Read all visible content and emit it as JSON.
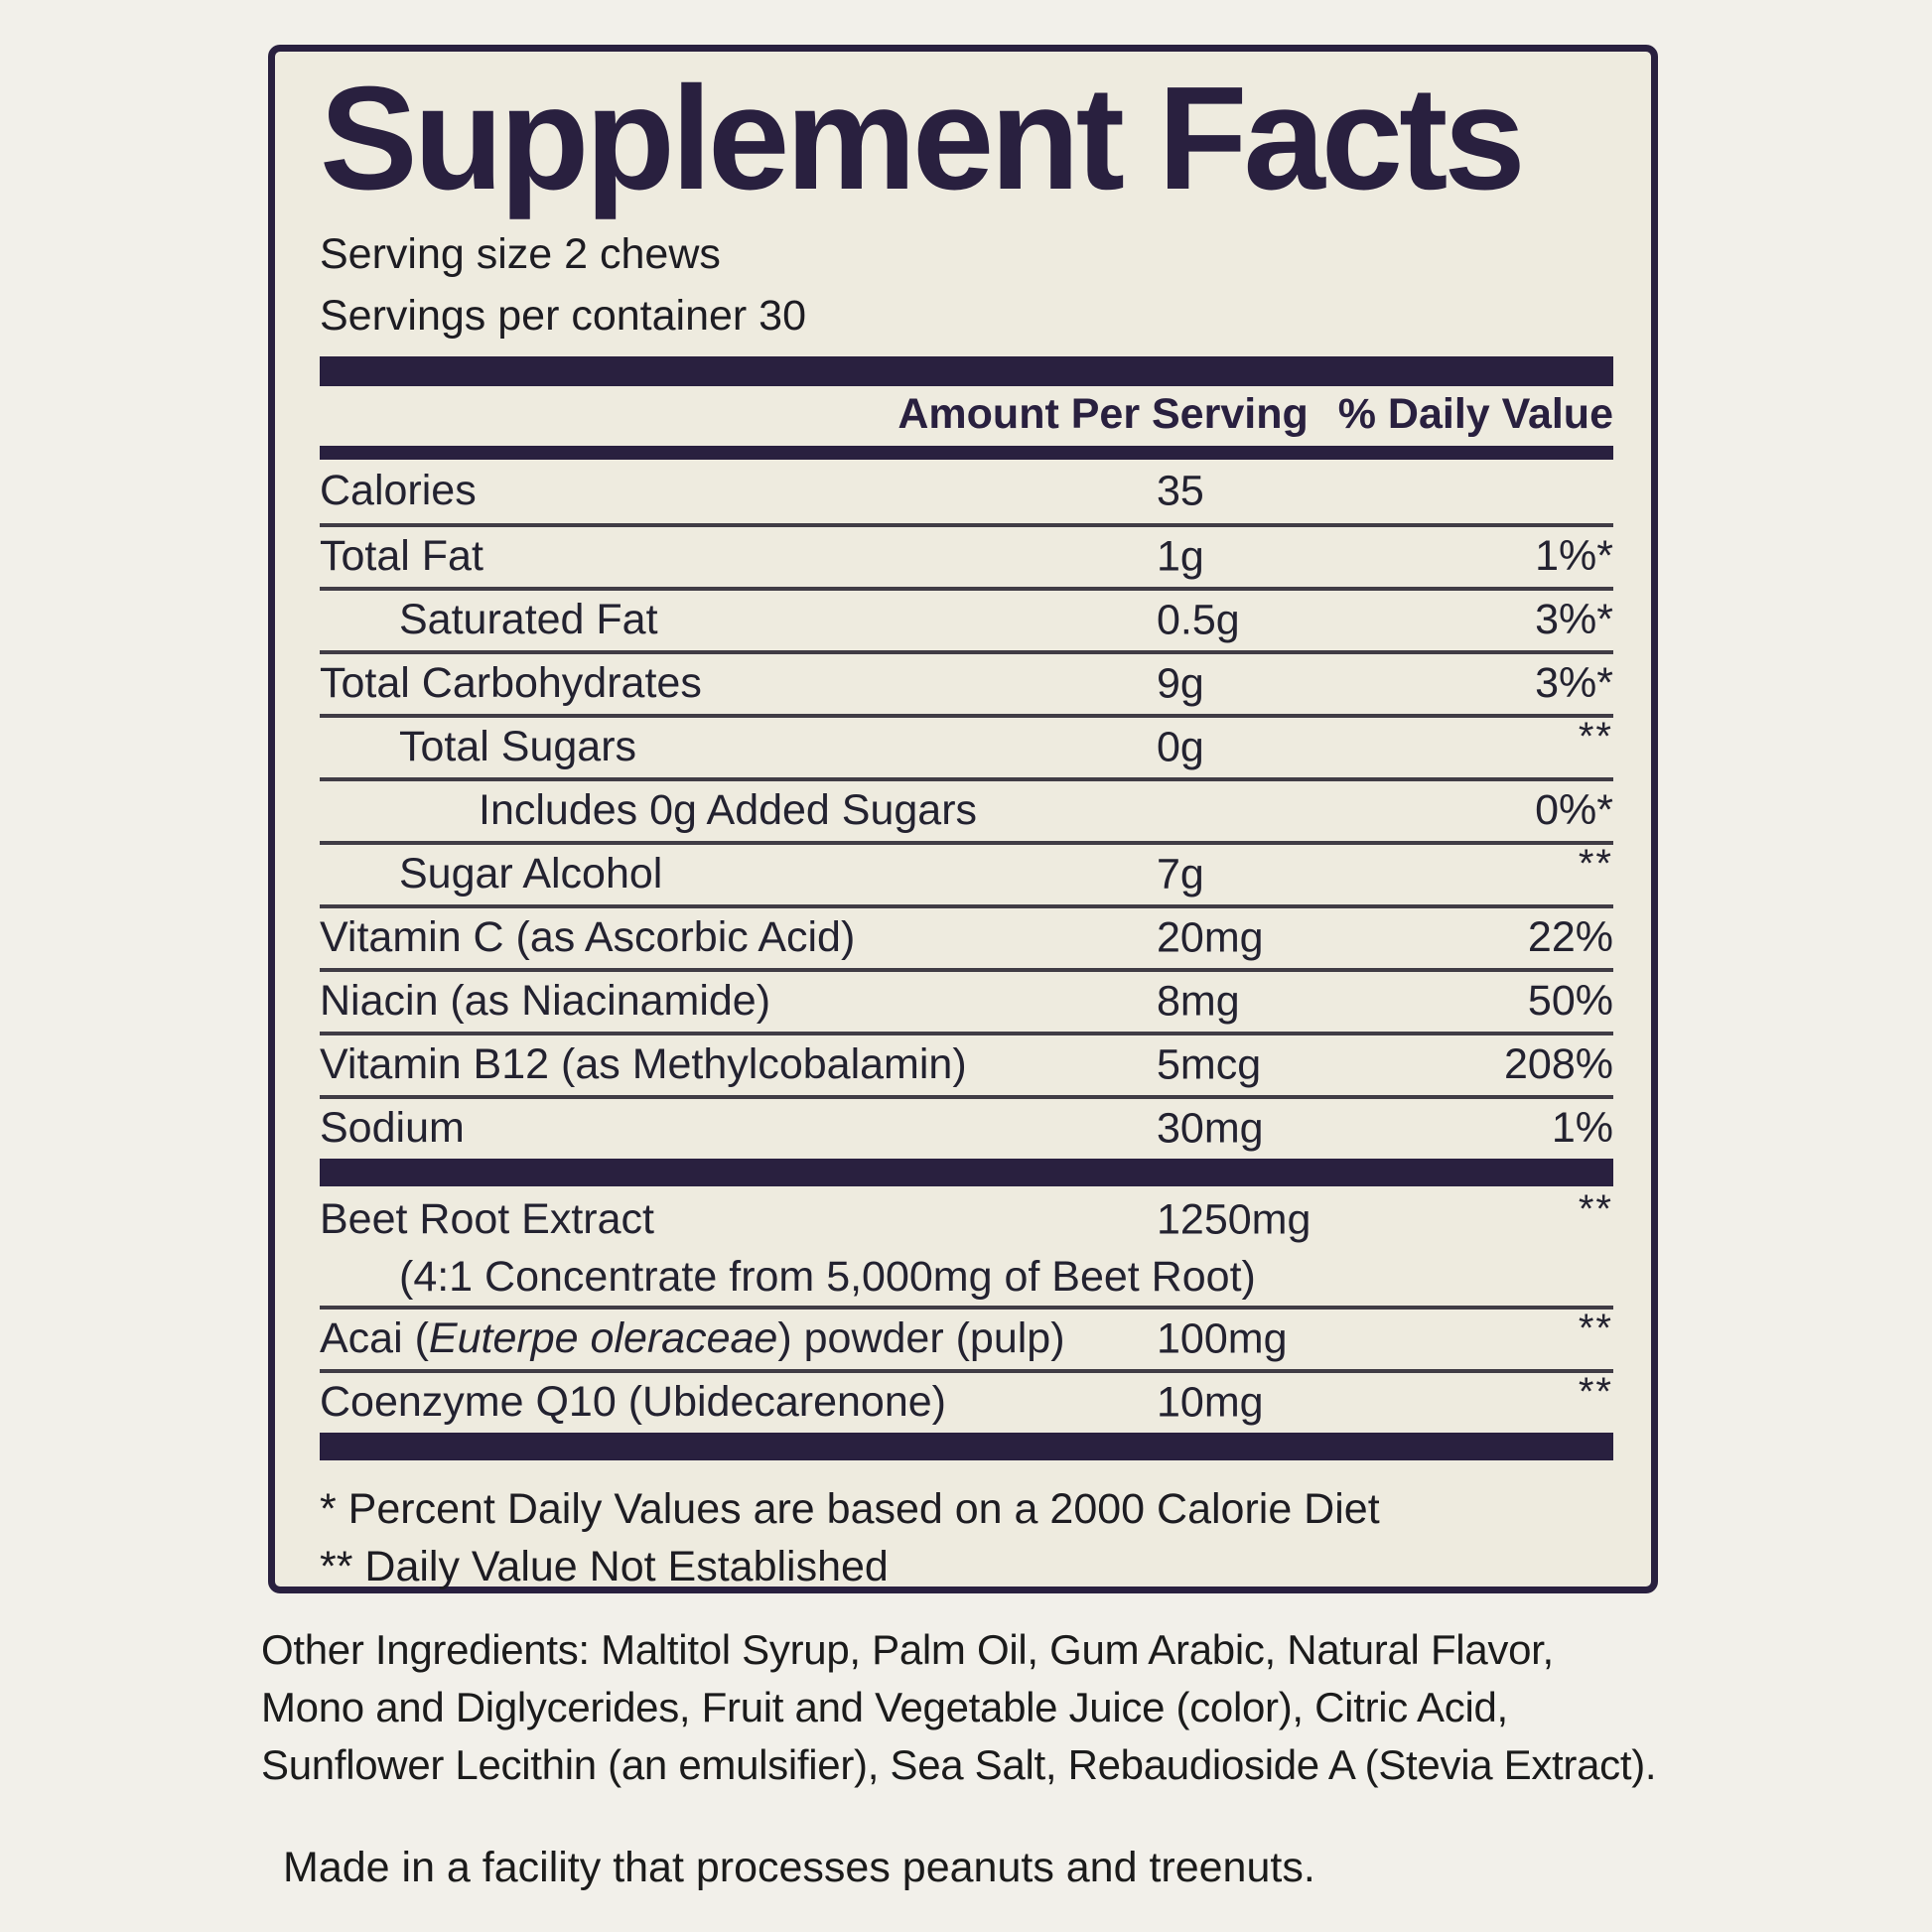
{
  "colors": {
    "accent": "#29203f",
    "box_bg": "#eeebdf",
    "page_bg": "#f2f0ea",
    "line": "#403c45",
    "text": "#232230"
  },
  "panel": {
    "title": "Supplement Facts",
    "serving_size": "Serving size 2 chews",
    "servings_per_container": "Servings per container 30",
    "header": {
      "amount": "Amount Per Serving",
      "daily_value": "% Daily Value"
    },
    "rows": [
      {
        "name": [
          {
            "t": "Calories"
          }
        ],
        "amount": "35",
        "dv": "",
        "indent": 0,
        "divider": "none"
      },
      {
        "name": [
          {
            "t": "Total Fat"
          }
        ],
        "amount": "1g",
        "dv": "1%*",
        "indent": 0,
        "divider": "thin"
      },
      {
        "name": [
          {
            "t": "Saturated Fat"
          }
        ],
        "amount": "0.5g",
        "dv": "3%*",
        "indent": 1,
        "divider": "thin"
      },
      {
        "name": [
          {
            "t": "Total Carbohydrates"
          }
        ],
        "amount": "9g",
        "dv": "3%*",
        "indent": 0,
        "divider": "thin"
      },
      {
        "name": [
          {
            "t": "Total Sugars"
          }
        ],
        "amount": "0g",
        "dv": "**",
        "indent": 1,
        "divider": "thin"
      },
      {
        "name": [
          {
            "t": "Includes 0g Added Sugars"
          }
        ],
        "amount": "",
        "dv": "0%*",
        "indent": 2,
        "divider": "thin"
      },
      {
        "name": [
          {
            "t": "Sugar Alcohol"
          }
        ],
        "amount": "7g",
        "dv": "**",
        "indent": 1,
        "divider": "thin"
      },
      {
        "name": [
          {
            "t": "Vitamin C (as Ascorbic Acid)"
          }
        ],
        "amount": "20mg",
        "dv": "22%",
        "indent": 0,
        "divider": "thin"
      },
      {
        "name": [
          {
            "t": "Niacin (as Niacinamide)"
          }
        ],
        "amount": "8mg",
        "dv": "50%",
        "indent": 0,
        "divider": "thin"
      },
      {
        "name": [
          {
            "t": "Vitamin B12 (as Methylcobalamin)"
          }
        ],
        "amount": "5mcg",
        "dv": "208%",
        "indent": 0,
        "divider": "thin"
      },
      {
        "name": [
          {
            "t": "Sodium"
          }
        ],
        "amount": "30mg",
        "dv": "1%",
        "indent": 0,
        "divider": "thin"
      },
      {
        "name": [
          {
            "t": "Beet Root Extract"
          }
        ],
        "amount": "1250mg",
        "dv": "**",
        "indent": 0,
        "divider": "thick",
        "subline": "(4:1 Concentrate from 5,000mg of Beet Root)"
      },
      {
        "name": [
          {
            "t": "Acai ("
          },
          {
            "t": "Euterpe oleraceae",
            "i": true
          },
          {
            "t": ") powder (pulp)"
          }
        ],
        "amount": "100mg",
        "dv": "**",
        "indent": 0,
        "divider": "thin"
      },
      {
        "name": [
          {
            "t": "Coenzyme Q10 (Ubidecarenone)"
          }
        ],
        "amount": "10mg",
        "dv": "**",
        "indent": 0,
        "divider": "thin"
      }
    ],
    "footnotes": [
      "* Percent Daily Values are based on a 2000 Calorie Diet",
      "** Daily Value Not Established"
    ]
  },
  "below_panel": {
    "other_ingredients_lines": [
      "Other Ingredients: Maltitol Syrup, Palm Oil, Gum Arabic, Natural Flavor,",
      "Mono and Diglycerides, Fruit and Vegetable Juice (color), Citric Acid,",
      "Sunflower Lecithin (an emulsifier), Sea Salt, Rebaudioside A (Stevia Extract)."
    ],
    "allergen_notice": "Made in a facility that processes peanuts and treenuts."
  }
}
